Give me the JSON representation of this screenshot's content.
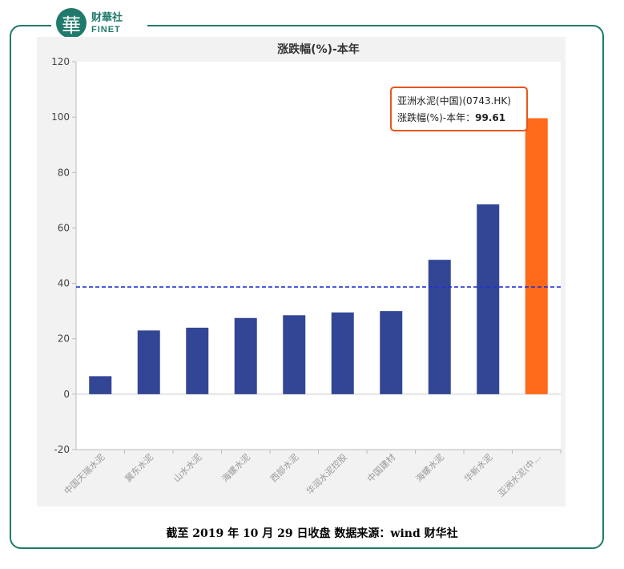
{
  "brand": {
    "mark": "華",
    "name_cn": "财華社",
    "name_en": "FINET"
  },
  "caption": "截至 2019 年 10 月 29 日收盘  数据来源：wind 财华社",
  "chart_data": {
    "type": "bar",
    "title": "涨跌幅(%)-本年",
    "categories": [
      "中国天瑞水泥",
      "冀东水泥",
      "山水水泥",
      "海螺水泥",
      "西部水泥",
      "华润水泥控股",
      "中国建材",
      "海螺水泥",
      "华新水泥",
      "亚洲水泥(中..."
    ],
    "values": [
      6.5,
      23,
      24,
      27.5,
      28.5,
      29.5,
      30,
      48.5,
      68.5,
      99.61
    ],
    "ylim": [
      -20,
      120
    ],
    "yticks": [
      -20,
      0,
      20,
      40,
      60,
      80,
      100,
      120
    ],
    "grid": false,
    "bar_color": "#334695",
    "highlight_index": 9,
    "highlight_color": "#ff6a1a",
    "average_line": 38.7,
    "average_line_color": "#2233cc",
    "tooltip": {
      "line1": "亚洲水泥(中国)(0743.HK)",
      "line2_label": "涨跌幅(%)-本年：",
      "line2_value": "99.61"
    }
  }
}
